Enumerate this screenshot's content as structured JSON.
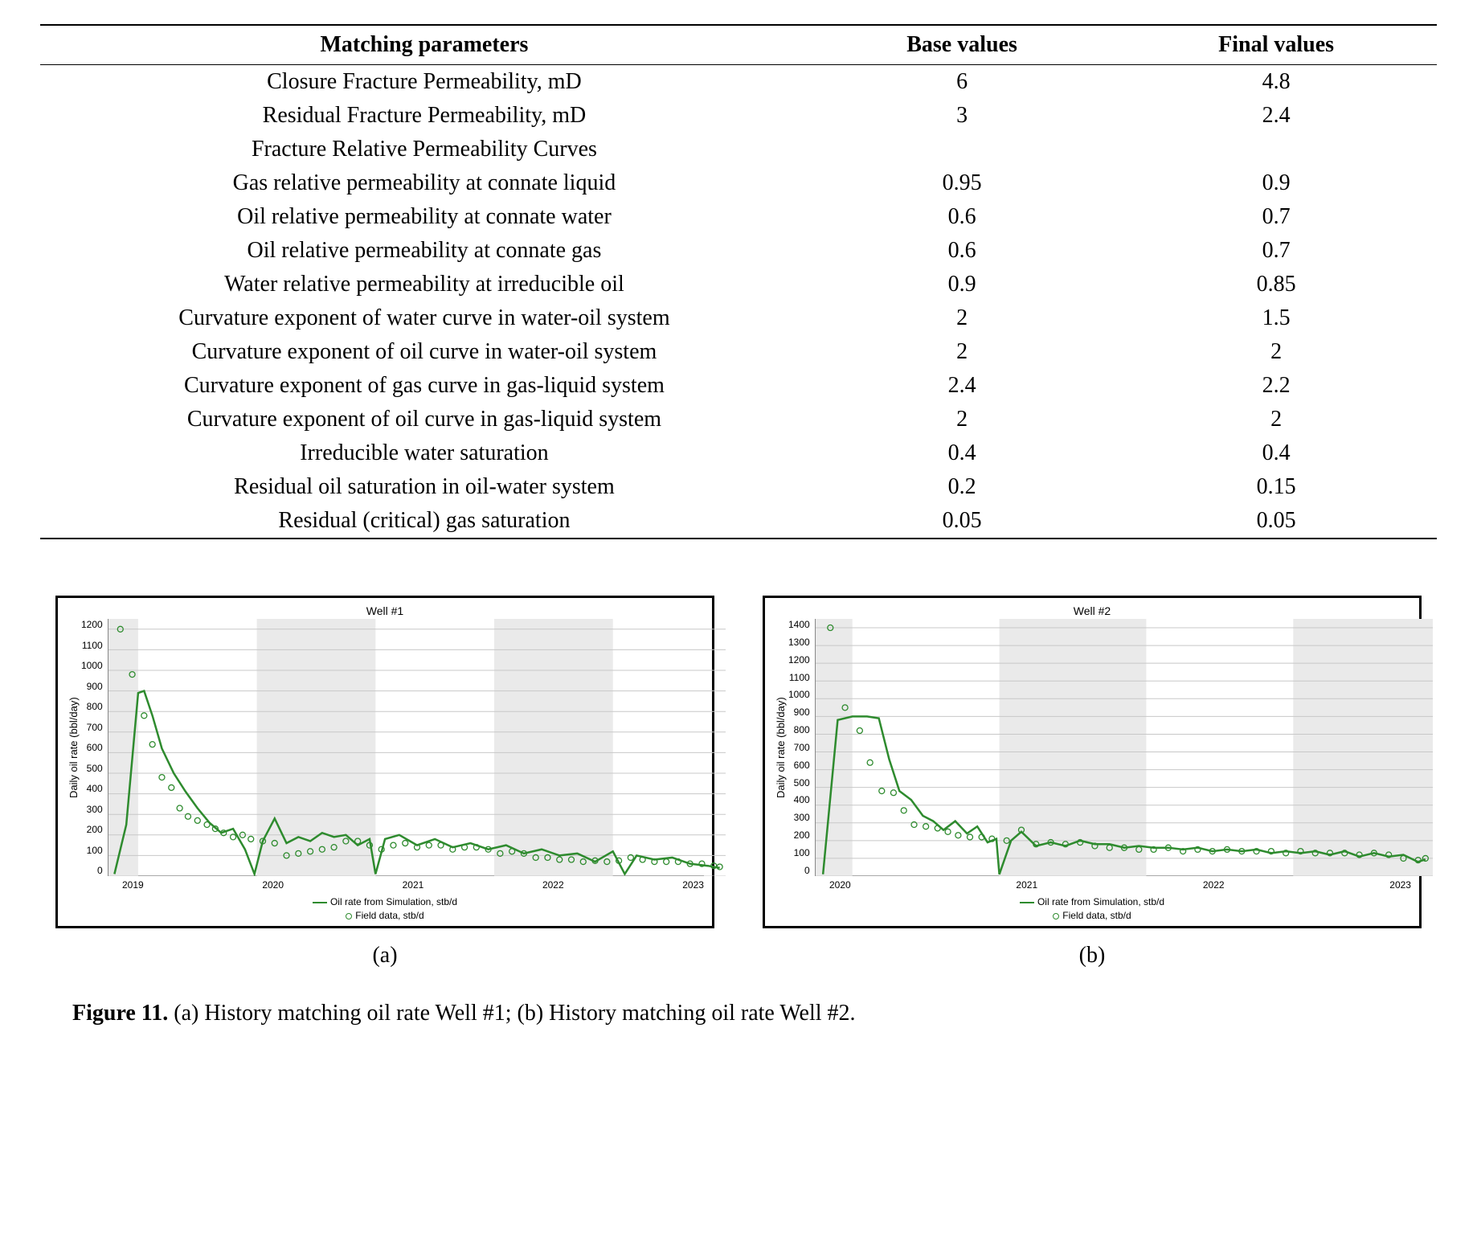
{
  "table": {
    "headers": [
      "Matching parameters",
      "Base values",
      "Final values"
    ],
    "rows": [
      [
        "Closure Fracture Permeability, mD",
        "6",
        "4.8"
      ],
      [
        "Residual Fracture Permeability, mD",
        "3",
        "2.4"
      ],
      [
        "Fracture Relative Permeability Curves",
        "",
        ""
      ],
      [
        "Gas relative permeability at connate liquid",
        "0.95",
        "0.9"
      ],
      [
        "Oil relative permeability at connate water",
        "0.6",
        "0.7"
      ],
      [
        "Oil relative permeability at connate gas",
        "0.6",
        "0.7"
      ],
      [
        "Water relative permeability at irreducible oil",
        "0.9",
        "0.85"
      ],
      [
        "Curvature exponent of water curve in water-oil system",
        "2",
        "1.5"
      ],
      [
        "Curvature exponent of oil curve in water-oil system",
        "2",
        "2"
      ],
      [
        "Curvature exponent of gas curve in gas-liquid system",
        "2.4",
        "2.2"
      ],
      [
        "Curvature exponent of oil curve in gas-liquid system",
        "2",
        "2"
      ],
      [
        "Irreducible water saturation",
        "0.4",
        "0.4"
      ],
      [
        "Residual oil saturation in oil-water system",
        "0.2",
        "0.15"
      ],
      [
        "Residual (critical) gas saturation",
        "0.05",
        "0.05"
      ]
    ]
  },
  "chart_a": {
    "type": "line-scatter",
    "title": "Well #1",
    "ylabel": "Daily oil rate (bbl/day)",
    "ylim": [
      0,
      1250
    ],
    "yticks": [
      0,
      100,
      200,
      300,
      400,
      500,
      600,
      700,
      800,
      900,
      1000,
      1100,
      1200
    ],
    "xticks": [
      "2019",
      "2020",
      "2021",
      "2022",
      "2023"
    ],
    "xrange": [
      2018.75,
      2023.95
    ],
    "grid_color": "#c8c8c8",
    "band_color": "#eaeaea",
    "bands": [
      [
        2018.75,
        2019.0
      ],
      [
        2020.0,
        2021.0
      ],
      [
        2022.0,
        2023.0
      ]
    ],
    "line_color": "#2e8b2e",
    "sim_line": [
      [
        2018.8,
        10
      ],
      [
        2018.9,
        250
      ],
      [
        2019.0,
        890
      ],
      [
        2019.05,
        900
      ],
      [
        2019.12,
        780
      ],
      [
        2019.2,
        620
      ],
      [
        2019.3,
        500
      ],
      [
        2019.4,
        410
      ],
      [
        2019.5,
        330
      ],
      [
        2019.6,
        260
      ],
      [
        2019.7,
        210
      ],
      [
        2019.8,
        230
      ],
      [
        2019.9,
        130
      ],
      [
        2019.98,
        10
      ],
      [
        2020.05,
        170
      ],
      [
        2020.15,
        280
      ],
      [
        2020.25,
        160
      ],
      [
        2020.35,
        190
      ],
      [
        2020.45,
        170
      ],
      [
        2020.55,
        210
      ],
      [
        2020.65,
        190
      ],
      [
        2020.75,
        200
      ],
      [
        2020.85,
        150
      ],
      [
        2020.95,
        180
      ],
      [
        2021.0,
        10
      ],
      [
        2021.08,
        180
      ],
      [
        2021.2,
        200
      ],
      [
        2021.35,
        150
      ],
      [
        2021.5,
        180
      ],
      [
        2021.65,
        140
      ],
      [
        2021.8,
        160
      ],
      [
        2021.95,
        130
      ],
      [
        2022.1,
        150
      ],
      [
        2022.25,
        110
      ],
      [
        2022.4,
        130
      ],
      [
        2022.55,
        100
      ],
      [
        2022.7,
        110
      ],
      [
        2022.85,
        70
      ],
      [
        2023.0,
        120
      ],
      [
        2023.1,
        10
      ],
      [
        2023.2,
        100
      ],
      [
        2023.35,
        80
      ],
      [
        2023.5,
        90
      ],
      [
        2023.65,
        60
      ],
      [
        2023.8,
        50
      ],
      [
        2023.9,
        40
      ]
    ],
    "field_color": "#2e8b2e",
    "field_points": [
      [
        2018.85,
        1200
      ],
      [
        2018.95,
        980
      ],
      [
        2019.05,
        780
      ],
      [
        2019.12,
        640
      ],
      [
        2019.2,
        480
      ],
      [
        2019.28,
        430
      ],
      [
        2019.35,
        330
      ],
      [
        2019.42,
        290
      ],
      [
        2019.5,
        270
      ],
      [
        2019.58,
        250
      ],
      [
        2019.65,
        230
      ],
      [
        2019.72,
        210
      ],
      [
        2019.8,
        190
      ],
      [
        2019.88,
        200
      ],
      [
        2019.95,
        180
      ],
      [
        2020.05,
        170
      ],
      [
        2020.15,
        160
      ],
      [
        2020.25,
        100
      ],
      [
        2020.35,
        110
      ],
      [
        2020.45,
        120
      ],
      [
        2020.55,
        130
      ],
      [
        2020.65,
        140
      ],
      [
        2020.75,
        170
      ],
      [
        2020.85,
        170
      ],
      [
        2020.95,
        150
      ],
      [
        2021.05,
        130
      ],
      [
        2021.15,
        150
      ],
      [
        2021.25,
        160
      ],
      [
        2021.35,
        140
      ],
      [
        2021.45,
        150
      ],
      [
        2021.55,
        150
      ],
      [
        2021.65,
        130
      ],
      [
        2021.75,
        140
      ],
      [
        2021.85,
        140
      ],
      [
        2021.95,
        130
      ],
      [
        2022.05,
        110
      ],
      [
        2022.15,
        120
      ],
      [
        2022.25,
        110
      ],
      [
        2022.35,
        90
      ],
      [
        2022.45,
        90
      ],
      [
        2022.55,
        80
      ],
      [
        2022.65,
        80
      ],
      [
        2022.75,
        70
      ],
      [
        2022.85,
        75
      ],
      [
        2022.95,
        70
      ],
      [
        2023.05,
        75
      ],
      [
        2023.15,
        90
      ],
      [
        2023.25,
        80
      ],
      [
        2023.35,
        70
      ],
      [
        2023.45,
        70
      ],
      [
        2023.55,
        70
      ],
      [
        2023.65,
        60
      ],
      [
        2023.75,
        60
      ],
      [
        2023.85,
        50
      ],
      [
        2023.9,
        45
      ]
    ],
    "legend": {
      "sim": "Oil rate from Simulation, stb/d",
      "field": "Field data, stb/d"
    }
  },
  "chart_b": {
    "type": "line-scatter",
    "title": "Well #2",
    "ylabel": "Daily oil rate (bbl/day)",
    "ylim": [
      0,
      1450
    ],
    "yticks": [
      0,
      100,
      200,
      300,
      400,
      500,
      600,
      700,
      800,
      900,
      1000,
      1100,
      1200,
      1300,
      1400
    ],
    "xticks": [
      "2020",
      "2021",
      "2022",
      "2023"
    ],
    "xrange": [
      2019.75,
      2023.95
    ],
    "grid_color": "#c8c8c8",
    "band_color": "#eaeaea",
    "bands": [
      [
        2019.75,
        2020.0
      ],
      [
        2021.0,
        2022.0
      ],
      [
        2023.0,
        2023.95
      ]
    ],
    "line_color": "#2e8b2e",
    "sim_line": [
      [
        2019.8,
        10
      ],
      [
        2019.9,
        880
      ],
      [
        2020.0,
        900
      ],
      [
        2020.1,
        900
      ],
      [
        2020.18,
        890
      ],
      [
        2020.25,
        660
      ],
      [
        2020.32,
        480
      ],
      [
        2020.4,
        430
      ],
      [
        2020.48,
        340
      ],
      [
        2020.55,
        310
      ],
      [
        2020.62,
        260
      ],
      [
        2020.7,
        310
      ],
      [
        2020.78,
        240
      ],
      [
        2020.85,
        280
      ],
      [
        2020.92,
        190
      ],
      [
        2020.98,
        210
      ],
      [
        2021.0,
        10
      ],
      [
        2021.08,
        200
      ],
      [
        2021.15,
        250
      ],
      [
        2021.25,
        170
      ],
      [
        2021.35,
        190
      ],
      [
        2021.45,
        170
      ],
      [
        2021.55,
        200
      ],
      [
        2021.65,
        180
      ],
      [
        2021.75,
        180
      ],
      [
        2021.85,
        160
      ],
      [
        2021.95,
        170
      ],
      [
        2022.05,
        160
      ],
      [
        2022.15,
        160
      ],
      [
        2022.25,
        150
      ],
      [
        2022.35,
        160
      ],
      [
        2022.45,
        140
      ],
      [
        2022.55,
        150
      ],
      [
        2022.65,
        140
      ],
      [
        2022.75,
        150
      ],
      [
        2022.85,
        130
      ],
      [
        2022.95,
        140
      ],
      [
        2023.05,
        130
      ],
      [
        2023.15,
        140
      ],
      [
        2023.25,
        120
      ],
      [
        2023.35,
        140
      ],
      [
        2023.45,
        110
      ],
      [
        2023.55,
        130
      ],
      [
        2023.65,
        110
      ],
      [
        2023.75,
        120
      ],
      [
        2023.85,
        80
      ],
      [
        2023.9,
        95
      ]
    ],
    "field_color": "#2e8b2e",
    "field_points": [
      [
        2019.85,
        1400
      ],
      [
        2019.95,
        950
      ],
      [
        2020.05,
        820
      ],
      [
        2020.12,
        640
      ],
      [
        2020.2,
        480
      ],
      [
        2020.28,
        470
      ],
      [
        2020.35,
        370
      ],
      [
        2020.42,
        290
      ],
      [
        2020.5,
        280
      ],
      [
        2020.58,
        270
      ],
      [
        2020.65,
        250
      ],
      [
        2020.72,
        230
      ],
      [
        2020.8,
        220
      ],
      [
        2020.88,
        220
      ],
      [
        2020.95,
        210
      ],
      [
        2021.05,
        200
      ],
      [
        2021.15,
        260
      ],
      [
        2021.25,
        180
      ],
      [
        2021.35,
        190
      ],
      [
        2021.45,
        180
      ],
      [
        2021.55,
        190
      ],
      [
        2021.65,
        170
      ],
      [
        2021.75,
        160
      ],
      [
        2021.85,
        160
      ],
      [
        2021.95,
        150
      ],
      [
        2022.05,
        150
      ],
      [
        2022.15,
        160
      ],
      [
        2022.25,
        140
      ],
      [
        2022.35,
        150
      ],
      [
        2022.45,
        140
      ],
      [
        2022.55,
        150
      ],
      [
        2022.65,
        140
      ],
      [
        2022.75,
        140
      ],
      [
        2022.85,
        140
      ],
      [
        2022.95,
        130
      ],
      [
        2023.05,
        140
      ],
      [
        2023.15,
        130
      ],
      [
        2023.25,
        130
      ],
      [
        2023.35,
        130
      ],
      [
        2023.45,
        120
      ],
      [
        2023.55,
        130
      ],
      [
        2023.65,
        120
      ],
      [
        2023.75,
        100
      ],
      [
        2023.85,
        90
      ],
      [
        2023.9,
        100
      ]
    ],
    "legend": {
      "sim": "Oil rate from Simulation, stb/d",
      "field": "Field data, stb/d"
    }
  },
  "subcaps": {
    "a": "(a)",
    "b": "(b)"
  },
  "figure_caption": {
    "label": "Figure 11.",
    "text": " (a) History matching oil rate Well #1; (b) History matching oil rate Well #2."
  }
}
